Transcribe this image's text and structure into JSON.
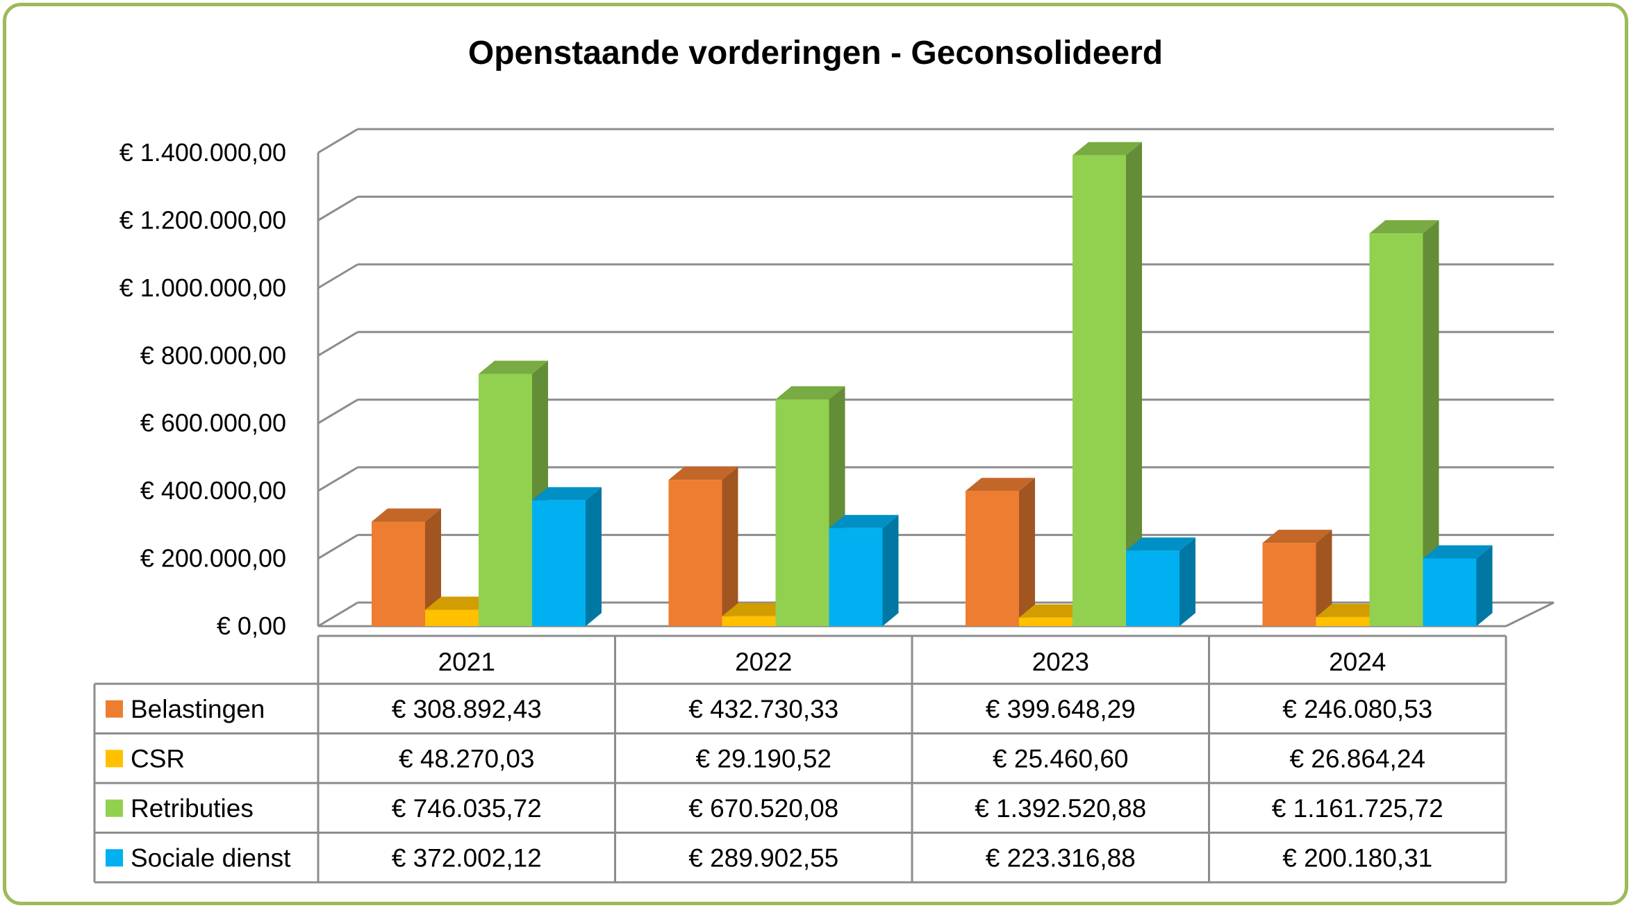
{
  "chart_data": {
    "type": "bar",
    "title": "Openstaande vorderingen - Geconsolideerd",
    "categories": [
      "2021",
      "2022",
      "2023",
      "2024"
    ],
    "series": [
      {
        "name": "Belastingen",
        "color": "#ed7d31",
        "values": [
          308892.43,
          432730.33,
          399648.29,
          246080.53
        ],
        "labels": [
          "€ 308.892,43",
          "€ 432.730,33",
          "€ 399.648,29",
          "€ 246.080,53"
        ]
      },
      {
        "name": "CSR",
        "color": "#ffc000",
        "values": [
          48270.03,
          29190.52,
          25460.6,
          26864.24
        ],
        "labels": [
          "€ 48.270,03",
          "€ 29.190,52",
          "€ 25.460,60",
          "€ 26.864,24"
        ]
      },
      {
        "name": "Retributies",
        "color": "#92d050",
        "values": [
          746035.72,
          670520.08,
          1392520.88,
          1161725.72
        ],
        "labels": [
          "€ 746.035,72",
          "€ 670.520,08",
          "€ 1.392.520,88",
          "€ 1.161.725,72"
        ]
      },
      {
        "name": "Sociale dienst",
        "color": "#00b0f0",
        "values": [
          372002.12,
          289902.55,
          223316.88,
          200180.31
        ],
        "labels": [
          "€ 372.002,12",
          "€ 289.902,55",
          "€ 223.316,88",
          "€ 200.180,31"
        ]
      }
    ],
    "yticks": [
      0,
      200000,
      400000,
      600000,
      800000,
      1000000,
      1200000,
      1400000
    ],
    "ytick_labels": [
      "€ 0,00",
      "€ 200.000,00",
      "€ 400.000,00",
      "€ 600.000,00",
      "€ 800.000,00",
      "€ 1.000.000,00",
      "€ 1.200.000,00",
      "€ 1.400.000,00"
    ],
    "ylim": [
      0,
      1400000
    ],
    "grid": true,
    "legend": "data-table",
    "style": "3d-clustered-column"
  }
}
